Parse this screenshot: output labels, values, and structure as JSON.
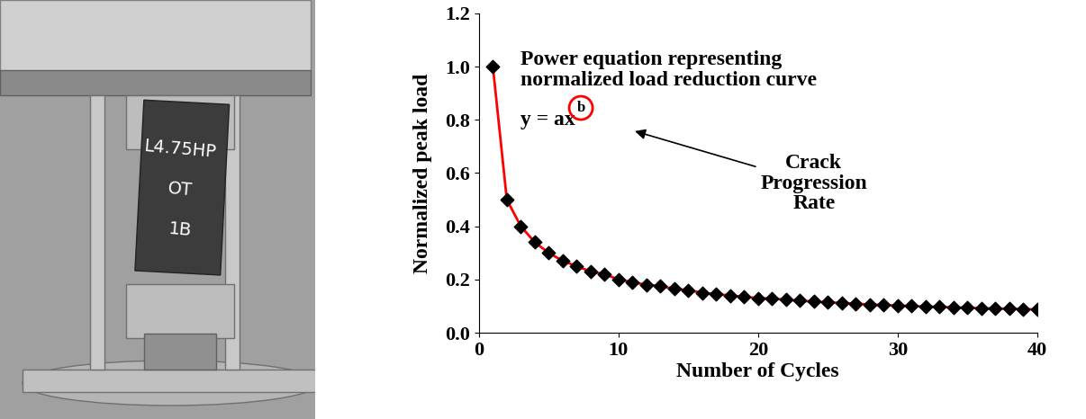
{
  "photo": {
    "specimen_label": [
      "L4.75HP",
      "OT",
      "1B"
    ]
  },
  "chart_data": {
    "type": "line",
    "x_label": "Number of Cycles",
    "y_label": "Normalized peak load",
    "annotations": {
      "equation_title": "Power equation representing\nnormalized load reduction curve",
      "equation": "y = ax",
      "exponent": "b",
      "arrow_label": "Crack\nProgression\nRate"
    },
    "x": [
      1,
      2,
      3,
      4,
      5,
      6,
      7,
      8,
      9,
      10,
      11,
      12,
      13,
      14,
      15,
      16,
      17,
      18,
      19,
      20,
      21,
      22,
      23,
      24,
      25,
      26,
      27,
      28,
      29,
      30,
      31,
      32,
      33,
      34,
      35,
      36,
      37,
      38,
      39,
      40
    ],
    "series": [
      {
        "type": "line",
        "color": "#ff0000",
        "line_style": "solid",
        "values": [
          1.0,
          0.5,
          0.4,
          0.34,
          0.3,
          0.27,
          0.25,
          0.23,
          0.22,
          0.2,
          0.19,
          0.18,
          0.175,
          0.165,
          0.16,
          0.15,
          0.145,
          0.14,
          0.135,
          0.13,
          0.128,
          0.124,
          0.12,
          0.117,
          0.114,
          0.112,
          0.109,
          0.106,
          0.104,
          0.102,
          0.1,
          0.098,
          0.097,
          0.095,
          0.094,
          0.092,
          0.091,
          0.09,
          0.089,
          0.087
        ]
      },
      {
        "type": "scatter",
        "color": "#000000",
        "marker": "diamond",
        "values": [
          1.0,
          0.5,
          0.4,
          0.34,
          0.3,
          0.27,
          0.25,
          0.23,
          0.22,
          0.2,
          0.19,
          0.18,
          0.175,
          0.165,
          0.16,
          0.15,
          0.145,
          0.14,
          0.135,
          0.13,
          0.128,
          0.124,
          0.12,
          0.117,
          0.114,
          0.112,
          0.109,
          0.106,
          0.104,
          0.102,
          0.1,
          0.098,
          0.097,
          0.095,
          0.094,
          0.092,
          0.091,
          0.09,
          0.089,
          0.087
        ]
      }
    ],
    "xlim": [
      0,
      40
    ],
    "xticks": [
      0,
      10,
      20,
      30,
      40
    ],
    "ylim": [
      0,
      1.2
    ],
    "yticks": [
      {
        "value": 0.0,
        "label": "0.0"
      },
      0.2,
      0.4,
      0.6,
      0.8,
      {
        "value": 1.0,
        "label": "1.0"
      },
      1.2
    ],
    "grid": false
  }
}
